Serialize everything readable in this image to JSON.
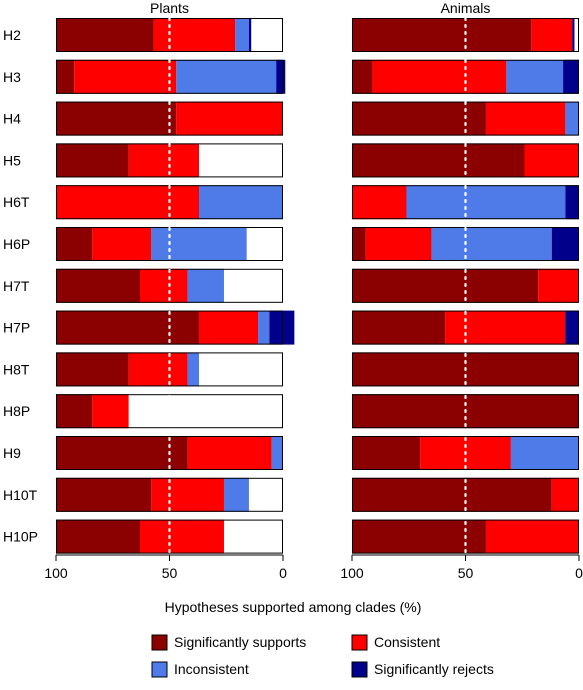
{
  "chart_data": {
    "type": "bar",
    "orientation": "horizontal-stacked",
    "xlabel": "Hypotheses supported among clades (%)",
    "x_axis_reversed": true,
    "xlim": [
      100,
      0
    ],
    "xticks": [
      "100",
      "50",
      "0"
    ],
    "reference_line": {
      "x": 50,
      "style": "white dotted"
    },
    "categories": [
      "H2",
      "H3",
      "H4",
      "H5",
      "H6T",
      "H6P",
      "H7T",
      "H7P",
      "H8T",
      "H8P",
      "H9",
      "H10T",
      "H10P"
    ],
    "legend": [
      {
        "name": "Significantly supports",
        "color": "#8B0000"
      },
      {
        "name": "Consistent",
        "color": "#FF0000"
      },
      {
        "name": "Inconsistent",
        "color": "#4F7BE8"
      },
      {
        "name": "Significantly rejects",
        "color": "#00008B"
      }
    ],
    "panels": [
      {
        "title": "Plants",
        "series": [
          {
            "name": "Significantly supports",
            "values": [
              43,
              8,
              53,
              32,
              0,
              16,
              37,
              63,
              32,
              16,
              58,
              42,
              37
            ]
          },
          {
            "name": "Consistent",
            "values": [
              36,
              45,
              47,
              31,
              63,
              26,
              21,
              26,
              26,
              16,
              37,
              32,
              37
            ]
          },
          {
            "name": "Inconsistent",
            "values": [
              6,
              44,
              0,
              0,
              37,
              42,
              16,
              5,
              5,
              0,
              5,
              11,
              0
            ]
          },
          {
            "name": "Significantly rejects",
            "values": [
              1,
              4,
              0,
              0,
              0,
              0,
              0,
              11,
              0,
              0,
              0,
              0,
              0
            ]
          }
        ]
      },
      {
        "title": "Animals",
        "series": [
          {
            "name": "Significantly supports",
            "values": [
              79,
              9,
              59,
              76,
              0,
              6,
              82,
              41,
              100,
              100,
              30,
              88,
              59
            ]
          },
          {
            "name": "Consistent",
            "values": [
              18,
              59,
              35,
              24,
              24,
              29,
              18,
              53,
              0,
              0,
              40,
              12,
              41
            ]
          },
          {
            "name": "Inconsistent",
            "values": [
              0,
              25,
              6,
              0,
              70,
              53,
              0,
              0,
              0,
              0,
              30,
              0,
              0
            ]
          },
          {
            "name": "Significantly rejects",
            "values": [
              1,
              7,
              0,
              0,
              6,
              12,
              0,
              6,
              0,
              0,
              0,
              0,
              0
            ]
          }
        ]
      }
    ]
  }
}
